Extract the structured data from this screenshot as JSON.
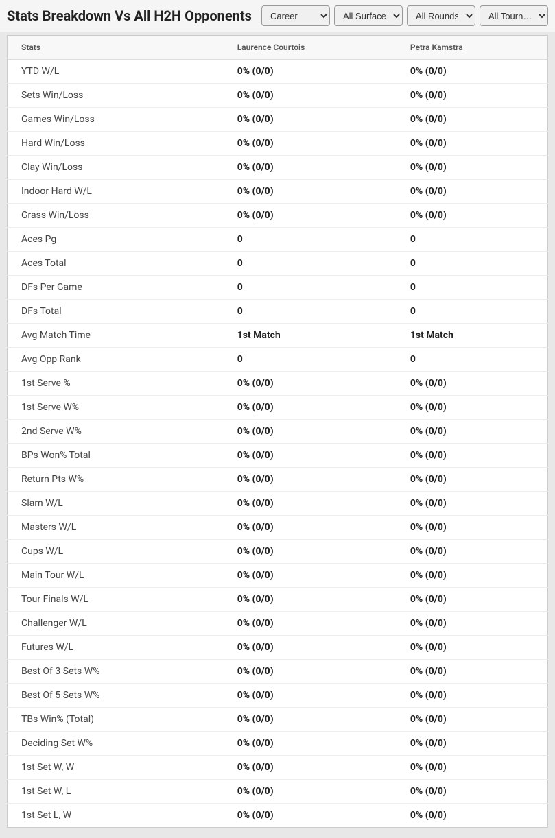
{
  "header": {
    "title": "Stats Breakdown Vs All H2H Opponents",
    "filters": {
      "career": "Career",
      "surfaces": "All Surfaces",
      "rounds": "All Rounds",
      "tournaments": "All Tourn…"
    }
  },
  "table": {
    "columns": {
      "stats": "Stats",
      "player1": "Laurence Courtois",
      "player2": "Petra Kamstra"
    },
    "rows": [
      {
        "label": "YTD W/L",
        "p1": "0% (0/0)",
        "p2": "0% (0/0)"
      },
      {
        "label": "Sets Win/Loss",
        "p1": "0% (0/0)",
        "p2": "0% (0/0)"
      },
      {
        "label": "Games Win/Loss",
        "p1": "0% (0/0)",
        "p2": "0% (0/0)"
      },
      {
        "label": "Hard Win/Loss",
        "p1": "0% (0/0)",
        "p2": "0% (0/0)"
      },
      {
        "label": "Clay Win/Loss",
        "p1": "0% (0/0)",
        "p2": "0% (0/0)"
      },
      {
        "label": "Indoor Hard W/L",
        "p1": "0% (0/0)",
        "p2": "0% (0/0)"
      },
      {
        "label": "Grass Win/Loss",
        "p1": "0% (0/0)",
        "p2": "0% (0/0)"
      },
      {
        "label": "Aces Pg",
        "p1": "0",
        "p2": "0"
      },
      {
        "label": "Aces Total",
        "p1": "0",
        "p2": "0"
      },
      {
        "label": "DFs Per Game",
        "p1": "0",
        "p2": "0"
      },
      {
        "label": "DFs Total",
        "p1": "0",
        "p2": "0"
      },
      {
        "label": "Avg Match Time",
        "p1": "1st Match",
        "p2": "1st Match"
      },
      {
        "label": "Avg Opp Rank",
        "p1": "0",
        "p2": "0"
      },
      {
        "label": "1st Serve %",
        "p1": "0% (0/0)",
        "p2": "0% (0/0)"
      },
      {
        "label": "1st Serve W%",
        "p1": "0% (0/0)",
        "p2": "0% (0/0)"
      },
      {
        "label": "2nd Serve W%",
        "p1": "0% (0/0)",
        "p2": "0% (0/0)"
      },
      {
        "label": "BPs Won% Total",
        "p1": "0% (0/0)",
        "p2": "0% (0/0)"
      },
      {
        "label": "Return Pts W%",
        "p1": "0% (0/0)",
        "p2": "0% (0/0)"
      },
      {
        "label": "Slam W/L",
        "p1": "0% (0/0)",
        "p2": "0% (0/0)"
      },
      {
        "label": "Masters W/L",
        "p1": "0% (0/0)",
        "p2": "0% (0/0)"
      },
      {
        "label": "Cups W/L",
        "p1": "0% (0/0)",
        "p2": "0% (0/0)"
      },
      {
        "label": "Main Tour W/L",
        "p1": "0% (0/0)",
        "p2": "0% (0/0)"
      },
      {
        "label": "Tour Finals W/L",
        "p1": "0% (0/0)",
        "p2": "0% (0/0)"
      },
      {
        "label": "Challenger W/L",
        "p1": "0% (0/0)",
        "p2": "0% (0/0)"
      },
      {
        "label": "Futures W/L",
        "p1": "0% (0/0)",
        "p2": "0% (0/0)"
      },
      {
        "label": "Best Of 3 Sets W%",
        "p1": "0% (0/0)",
        "p2": "0% (0/0)"
      },
      {
        "label": "Best Of 5 Sets W%",
        "p1": "0% (0/0)",
        "p2": "0% (0/0)"
      },
      {
        "label": "TBs Win% (Total)",
        "p1": "0% (0/0)",
        "p2": "0% (0/0)"
      },
      {
        "label": "Deciding Set W%",
        "p1": "0% (0/0)",
        "p2": "0% (0/0)"
      },
      {
        "label": "1st Set W, W",
        "p1": "0% (0/0)",
        "p2": "0% (0/0)"
      },
      {
        "label": "1st Set W, L",
        "p1": "0% (0/0)",
        "p2": "0% (0/0)"
      },
      {
        "label": "1st Set L, W",
        "p1": "0% (0/0)",
        "p2": "0% (0/0)"
      }
    ]
  },
  "styling": {
    "background_color": "#ffffff",
    "header_bg": "#f5f5f5",
    "table_wrapper_bg": "#e8e8e8",
    "thead_bg": "#f8f8f8",
    "border_color": "#ccc",
    "row_border": "#eee",
    "title_fontsize": 20,
    "title_color": "#222",
    "header_fontsize": 12,
    "cell_fontsize": 14,
    "bold_color": "#222",
    "label_color": "#444"
  }
}
